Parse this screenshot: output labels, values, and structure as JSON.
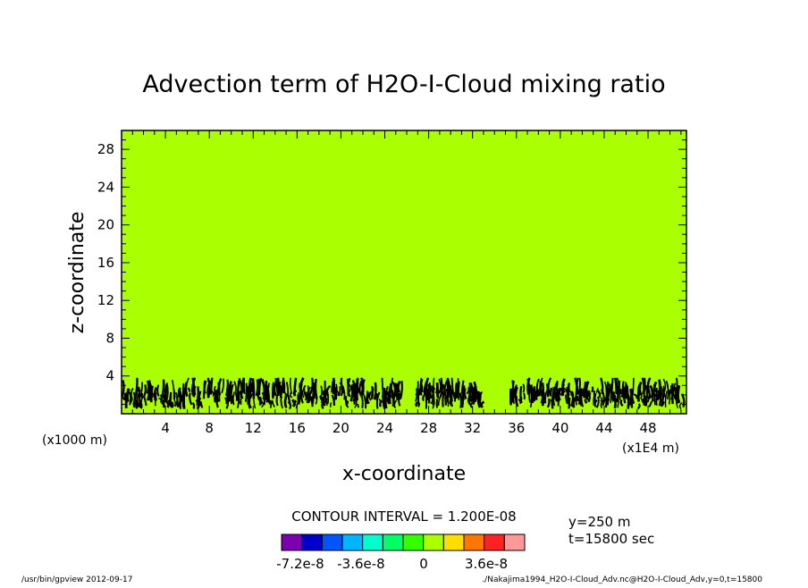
{
  "chart_data": {
    "type": "contour",
    "title": "Advection term of H2O-I-Cloud mixing ratio",
    "xlabel": "x-coordinate",
    "ylabel": "z-coordinate",
    "x_unit_left": "(x1000 m)",
    "x_unit_right": "(x1E4 m)",
    "xlim": [
      0,
      51.5
    ],
    "ylim": [
      0,
      30
    ],
    "xticks": [
      4,
      8,
      12,
      16,
      20,
      24,
      28,
      32,
      36,
      40,
      44,
      48
    ],
    "yticks": [
      4,
      8,
      12,
      16,
      20,
      24,
      28
    ],
    "fill_color": "#aaff00",
    "contour_color": "#000000",
    "contour_band_z": [
      0.5,
      3.8
    ],
    "contour_interval_text": "CONTOUR INTERVAL = 1.200E-08",
    "slice_y": "y=250 m",
    "time": "t=15800 sec",
    "colorbar": {
      "colors": [
        "#7a00b0",
        "#0000cc",
        "#0055ff",
        "#00b5ff",
        "#00ffcc",
        "#00ff66",
        "#33ff00",
        "#aaff00",
        "#ffdd00",
        "#ff7700",
        "#ff2222",
        "#ff9999"
      ],
      "labels": [
        "-7.2e-8",
        "-3.6e-8",
        "0",
        "3.6e-8"
      ]
    }
  },
  "footer": {
    "left": "/usr/bin/gpview   2012-09-17",
    "right": "./Nakajima1994_H2O-I-Cloud_Adv.nc@H2O-I-Cloud_Adv,y=0,t=15800"
  }
}
